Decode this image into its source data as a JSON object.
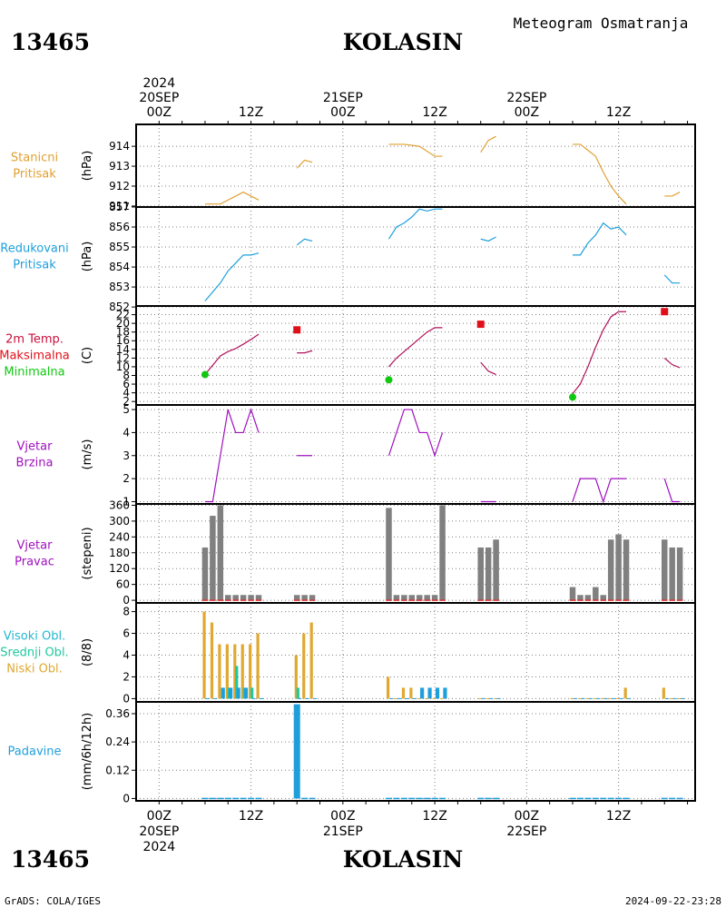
{
  "header": {
    "station_id": "13465",
    "station_name": "KOLASIN",
    "subtitle": "Meteogram Osmatranja"
  },
  "footer": {
    "station_id": "13465",
    "station_name": "KOLASIN",
    "credit": "GrADS: COLA/IGES",
    "timestamp": "2024-09-22-23:28"
  },
  "time_axis": {
    "tick_hours": [
      0,
      12,
      24,
      36,
      48,
      60
    ],
    "tick_labels": [
      "00Z",
      "12Z",
      "00Z",
      "12Z",
      "00Z",
      "12Z"
    ],
    "top_dates": [
      {
        "hour": 0,
        "lines": [
          "2024",
          "20SEP"
        ]
      },
      {
        "hour": 24,
        "lines": [
          "21SEP"
        ]
      },
      {
        "hour": 48,
        "lines": [
          "22SEP"
        ]
      }
    ],
    "bottom_dates": [
      {
        "hour": 0,
        "lines": [
          "20SEP",
          "2024"
        ]
      },
      {
        "hour": 24,
        "lines": [
          "21SEP"
        ]
      },
      {
        "hour": 48,
        "lines": [
          "22SEP"
        ]
      }
    ],
    "range_hours": [
      -3,
      70
    ]
  },
  "colors": {
    "pressure": "#e0a030",
    "reduced_pressure": "#1e9fdc",
    "temp_label": "#c8103c",
    "tmax": "#e0101a",
    "tmin": "#10c810",
    "temp_line": "#b0105a",
    "wind": "#a010c0",
    "direction_bar": "#808080",
    "direction_base": "#e03030",
    "high_cloud": "#20b8d0",
    "mid_cloud": "#20c8a0",
    "low_cloud": "#e0a830",
    "cloud_blue": "#1e9fdc",
    "precip": "#1e9fdc",
    "grid": "#808080"
  },
  "chart_data": [
    {
      "type": "line",
      "panel": "station_pressure",
      "label_lines": [
        "Stanicni",
        "Pritisak"
      ],
      "unit": "(hPa)",
      "ylim": [
        910.95,
        915.1
      ],
      "yticks": [
        911,
        912,
        913,
        914
      ],
      "series": [
        {
          "x": [
            6,
            8,
            11,
            13
          ],
          "values": [
            911.1,
            911.1,
            911.7,
            911.3
          ]
        },
        {
          "x": [
            18,
            19,
            20
          ],
          "values": [
            912.9,
            913.3,
            913.2
          ]
        },
        {
          "x": [
            30,
            32,
            34,
            36,
            37
          ],
          "values": [
            914.1,
            914.1,
            914.0,
            913.5,
            913.5
          ]
        },
        {
          "x": [
            42,
            43,
            44
          ],
          "values": [
            913.7,
            914.3,
            914.5
          ]
        },
        {
          "x": [
            54,
            55,
            56,
            57,
            58,
            59,
            60,
            61
          ],
          "values": [
            914.1,
            914.1,
            913.8,
            913.5,
            912.7,
            912.0,
            911.5,
            911.1
          ]
        },
        {
          "x": [
            66,
            67,
            68
          ],
          "values": [
            911.5,
            911.5,
            911.7
          ]
        }
      ]
    },
    {
      "type": "line",
      "panel": "reduced_pressure",
      "label_lines": [
        "Redukovani",
        "Pritisak"
      ],
      "unit": "(hPa)",
      "ylim": [
        852.05,
        857.0
      ],
      "yticks": [
        852,
        853,
        854,
        855,
        856,
        857
      ],
      "series": [
        {
          "x": [
            6,
            8,
            9,
            10,
            11,
            12,
            13
          ],
          "values": [
            852.3,
            853.2,
            853.8,
            854.2,
            854.6,
            854.6,
            854.7
          ]
        },
        {
          "x": [
            18,
            19,
            20
          ],
          "values": [
            855.1,
            855.4,
            855.3
          ]
        },
        {
          "x": [
            30,
            31,
            32,
            33,
            34,
            35,
            36,
            37
          ],
          "values": [
            855.4,
            856.0,
            856.2,
            856.5,
            856.9,
            856.8,
            856.9,
            856.9
          ]
        },
        {
          "x": [
            42,
            43,
            44
          ],
          "values": [
            855.4,
            855.3,
            855.5
          ]
        },
        {
          "x": [
            54,
            55,
            56,
            57,
            58,
            59,
            60,
            61
          ],
          "values": [
            854.6,
            854.6,
            855.2,
            855.6,
            856.2,
            855.9,
            856.0,
            855.6
          ]
        },
        {
          "x": [
            66,
            67,
            68
          ],
          "values": [
            853.6,
            853.2,
            853.2
          ]
        }
      ]
    },
    {
      "type": "line",
      "panel": "temperature",
      "label_lines": [
        "2m Temp.",
        "Maksimalna",
        "Minimalna"
      ],
      "unit": "(C)",
      "ylim": [
        1.2,
        24
      ],
      "yticks": [
        2,
        4,
        6,
        8,
        10,
        12,
        14,
        16,
        18,
        20,
        22
      ],
      "series": [
        {
          "x": [
            6,
            8,
            9,
            10,
            11,
            12,
            13
          ],
          "values": [
            8.2,
            12.5,
            13.5,
            14.2,
            15.2,
            16.3,
            17.5
          ]
        },
        {
          "x": [
            18,
            19,
            20
          ],
          "values": [
            13.2,
            13.2,
            13.7
          ]
        },
        {
          "x": [
            30,
            31,
            32,
            33,
            34,
            35,
            36,
            37
          ],
          "values": [
            10.0,
            12.0,
            13.5,
            15.0,
            16.5,
            18.0,
            19.0,
            19.0
          ]
        },
        {
          "x": [
            42,
            43,
            44
          ],
          "values": [
            11.0,
            9.0,
            8.2
          ]
        },
        {
          "x": [
            54,
            55,
            56,
            57,
            58,
            59,
            60,
            61
          ],
          "values": [
            3.8,
            6.0,
            10.0,
            14.5,
            18.5,
            21.5,
            22.7,
            22.7
          ]
        },
        {
          "x": [
            66,
            67,
            68
          ],
          "values": [
            12.0,
            10.5,
            9.8
          ]
        }
      ],
      "tmax": [
        {
          "x": 18,
          "value": 18.5
        },
        {
          "x": 42,
          "value": 19.8
        },
        {
          "x": 66,
          "value": 22.7
        }
      ],
      "tmin": [
        {
          "x": 6,
          "value": 8.2
        },
        {
          "x": 30,
          "value": 7.0
        },
        {
          "x": 54,
          "value": 3.0
        }
      ]
    },
    {
      "type": "line",
      "panel": "wind_speed",
      "label_lines": [
        "Vjetar",
        "Brzina"
      ],
      "unit": "(m/s)",
      "ylim": [
        0.9,
        5.2
      ],
      "yticks": [
        1,
        2,
        3,
        4,
        5
      ],
      "series": [
        {
          "x": [
            6,
            7,
            9,
            10,
            11,
            12,
            13
          ],
          "values": [
            1,
            1,
            5,
            4,
            4,
            5,
            4
          ]
        },
        {
          "x": [
            18,
            19,
            20
          ],
          "values": [
            3,
            3,
            3
          ]
        },
        {
          "x": [
            30,
            32,
            33,
            34,
            35,
            36,
            37
          ],
          "values": [
            3,
            5,
            5,
            4,
            4,
            3,
            4
          ]
        },
        {
          "x": [
            42,
            43,
            44
          ],
          "values": [
            1,
            1,
            1
          ]
        },
        {
          "x": [
            54,
            55,
            57,
            58,
            59,
            61
          ],
          "values": [
            1,
            2,
            2,
            1,
            2,
            2
          ]
        },
        {
          "x": [
            66,
            67,
            68
          ],
          "values": [
            2,
            1,
            1
          ]
        }
      ]
    },
    {
      "type": "bar",
      "panel": "wind_direction",
      "label_lines": [
        "Vjetar",
        "Pravac"
      ],
      "unit": "(stepeni)",
      "ylim": [
        -10,
        365
      ],
      "yticks": [
        0,
        60,
        120,
        180,
        240,
        300,
        360
      ],
      "x": [
        6,
        7,
        8,
        9,
        10,
        11,
        12,
        13,
        18,
        19,
        20,
        30,
        31,
        32,
        33,
        34,
        35,
        36,
        37,
        42,
        43,
        44,
        54,
        55,
        56,
        57,
        58,
        59,
        60,
        61,
        66,
        67,
        68
      ],
      "values": [
        200,
        320,
        360,
        20,
        20,
        20,
        20,
        20,
        20,
        20,
        20,
        350,
        20,
        20,
        20,
        20,
        20,
        20,
        360,
        200,
        200,
        230,
        50,
        20,
        20,
        50,
        20,
        230,
        250,
        230,
        230,
        200,
        200
      ]
    },
    {
      "type": "bar",
      "panel": "cloud_cover",
      "label_lines": [
        "Visoki Obl.",
        "Srednji Obl.",
        "Niski Obl."
      ],
      "unit": "(8/8)",
      "ylim": [
        -0.3,
        8.8
      ],
      "yticks": [
        0,
        2,
        4,
        6,
        8
      ],
      "low": {
        "x": [
          6,
          7,
          8,
          9,
          10,
          11,
          12,
          13,
          18,
          19,
          20,
          30,
          31,
          32,
          33,
          34,
          35,
          36,
          37,
          42,
          43,
          44,
          54,
          55,
          56,
          57,
          58,
          59,
          60,
          61,
          66,
          67,
          68
        ],
        "values": [
          8,
          7,
          5,
          5,
          5,
          5,
          5,
          6,
          4,
          6,
          7,
          2,
          0,
          1,
          1,
          0,
          0,
          0,
          0,
          0,
          0,
          0,
          0,
          0,
          0,
          0,
          0,
          0,
          0,
          1,
          1,
          0,
          0
        ]
      },
      "middle": {
        "x": [
          6,
          7,
          8,
          9,
          10,
          11,
          12,
          13,
          18,
          19,
          20,
          30,
          31,
          32,
          33,
          34,
          35,
          36,
          37,
          42,
          43,
          44,
          54,
          55,
          56,
          57,
          58,
          59,
          60,
          61,
          66,
          67,
          68
        ],
        "values": [
          0,
          0,
          0,
          1,
          3,
          1,
          1,
          0,
          1,
          0,
          0,
          0,
          0,
          0,
          0,
          0,
          0,
          0,
          0,
          0,
          0,
          0,
          0,
          0,
          0,
          0,
          0,
          0,
          0,
          0,
          0,
          0,
          0
        ]
      },
      "high": {
        "x": [
          6,
          7,
          8,
          9,
          10,
          11,
          12,
          13,
          18,
          19,
          20,
          30,
          31,
          32,
          33,
          34,
          35,
          36,
          37,
          42,
          43,
          44,
          54,
          55,
          56,
          57,
          58,
          59,
          60,
          61,
          66,
          67,
          68
        ],
        "values": [
          0,
          0,
          1,
          1,
          1,
          1,
          0,
          0,
          0,
          0,
          0,
          0,
          0,
          0,
          0,
          1,
          1,
          1,
          1,
          0,
          0,
          0,
          0,
          0,
          0,
          0,
          0,
          0,
          0,
          0,
          0,
          0,
          0
        ]
      }
    },
    {
      "type": "bar",
      "panel": "precipitation",
      "label_lines": [
        "Padavine"
      ],
      "unit": "(mm/6h/12h)",
      "ylim": [
        -0.01,
        0.41
      ],
      "yticks": [
        0,
        0.12,
        0.24,
        0.36
      ],
      "ytick_labels": [
        "0",
        "0.12",
        "0.24",
        "0.36"
      ],
      "x": [
        6,
        7,
        8,
        9,
        10,
        11,
        12,
        13,
        18,
        19,
        20,
        30,
        31,
        32,
        33,
        34,
        35,
        36,
        37,
        42,
        43,
        44,
        54,
        55,
        56,
        57,
        58,
        59,
        60,
        61,
        66,
        67,
        68
      ],
      "values": [
        0,
        0,
        0,
        0,
        0,
        0,
        0,
        0,
        0.4,
        0,
        0,
        0,
        0,
        0,
        0,
        0,
        0,
        0,
        0,
        0,
        0,
        0,
        0,
        0,
        0,
        0,
        0,
        0,
        0,
        0,
        0,
        0,
        0
      ]
    }
  ]
}
